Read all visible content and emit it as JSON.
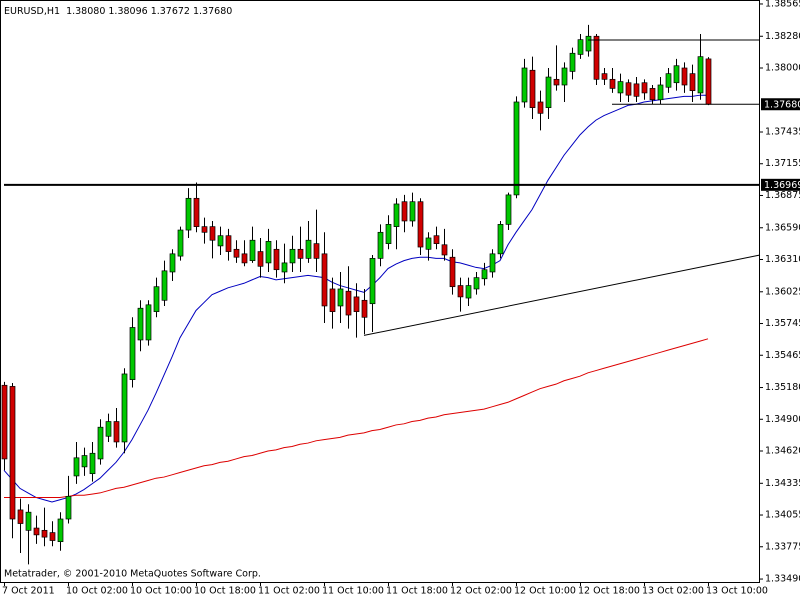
{
  "chart_data": {
    "type": "candlestick",
    "title": "EURUSD,H1",
    "info": "1.38080 1.38096 1.37672 1.37680",
    "annotation": "Metatrader, © 2001-2010 MetaQuotes Software Corp.",
    "categories": [
      "7 Oct 2011",
      null,
      null,
      null,
      null,
      null,
      null,
      null,
      "10 Oct 02:00",
      null,
      null,
      null,
      null,
      null,
      null,
      null,
      "10 Oct 10:00",
      null,
      null,
      null,
      null,
      null,
      null,
      null,
      "10 Oct 18:00",
      null,
      null,
      null,
      null,
      null,
      null,
      null,
      "11 Oct 02:00",
      null,
      null,
      null,
      null,
      null,
      null,
      null,
      "11 Oct 10:00",
      null,
      null,
      null,
      null,
      null,
      null,
      null,
      "11 Oct 18:00",
      null,
      null,
      null,
      null,
      null,
      null,
      null,
      "12 Oct 02:00",
      null,
      null,
      null,
      null,
      null,
      null,
      null,
      "12 Oct 10:00",
      null,
      null,
      null,
      null,
      null,
      null,
      null,
      "12 Oct 18:00",
      null,
      null,
      null,
      null,
      null,
      null,
      null,
      "13 Oct 02:00",
      null,
      null,
      null,
      null,
      null,
      null,
      null,
      "13 Oct 10:00"
    ],
    "open": [
      1.352,
      1.3519,
      1.341,
      1.3392,
      1.3394,
      1.3392,
      1.339,
      1.3382,
      1.3402,
      1.344,
      1.3448,
      1.3442,
      1.3455,
      1.3475,
      1.3488,
      1.347,
      1.3525,
      1.356,
      1.356,
      1.3585,
      1.3595,
      1.362,
      1.3634,
      1.3657,
      1.3685,
      1.366,
      1.366,
      1.3643,
      1.3652,
      1.364,
      1.3636,
      1.363,
      1.3638,
      1.3628,
      1.364,
      1.362,
      1.3628,
      1.364,
      1.3632,
      1.3645,
      1.3636,
      1.3605,
      1.359,
      1.3603,
      1.3598,
      1.3595,
      1.3592,
      1.3632,
      1.3645,
      1.366,
      1.3682,
      1.3665,
      1.3682,
      1.364,
      1.3652,
      1.3644,
      1.3633,
      1.3608,
      1.3597,
      1.3605,
      1.3614,
      1.362,
      1.3636,
      1.3662,
      1.3688,
      1.377,
      1.3798,
      1.377,
      1.3765,
      1.379,
      1.3785,
      1.3797,
      1.3812,
      1.3815,
      1.3828,
      1.3795,
      1.379,
      1.3778,
      1.3787,
      1.3786,
      1.3787,
      1.3782,
      1.3772,
      1.3783,
      1.3787,
      1.38,
      1.3795,
      1.3778,
      1.3808
    ],
    "high": [
      1.3523,
      1.3522,
      1.342,
      1.3415,
      1.3405,
      1.3412,
      1.34,
      1.3408,
      1.344,
      1.347,
      1.3465,
      1.347,
      1.349,
      1.3495,
      1.35,
      1.3535,
      1.358,
      1.3595,
      1.3595,
      1.3615,
      1.363,
      1.364,
      1.366,
      1.3694,
      1.3699,
      1.3668,
      1.3665,
      1.366,
      1.3658,
      1.3648,
      1.3648,
      1.366,
      1.365,
      1.3658,
      1.3648,
      1.3645,
      1.3652,
      1.366,
      1.3665,
      1.3675,
      1.3655,
      1.3615,
      1.362,
      1.3625,
      1.361,
      1.3605,
      1.3635,
      1.3662,
      1.367,
      1.3685,
      1.3688,
      1.369,
      1.3685,
      1.3655,
      1.366,
      1.3658,
      1.364,
      1.3615,
      1.3615,
      1.362,
      1.3628,
      1.364,
      1.3665,
      1.369,
      1.3775,
      1.3808,
      1.381,
      1.378,
      1.38,
      1.382,
      1.3805,
      1.3818,
      1.383,
      1.3838,
      1.383,
      1.38,
      1.38,
      1.3795,
      1.379,
      1.3792,
      1.379,
      1.3785,
      1.3792,
      1.38,
      1.3808,
      1.3805,
      1.3803,
      1.383,
      1.38096
    ],
    "low": [
      1.3445,
      1.3385,
      1.3372,
      1.3362,
      1.338,
      1.3378,
      1.3378,
      1.3374,
      1.3398,
      1.3433,
      1.344,
      1.3435,
      1.345,
      1.347,
      1.3465,
      1.346,
      1.3518,
      1.355,
      1.3555,
      1.358,
      1.359,
      1.3612,
      1.363,
      1.365,
      1.3655,
      1.3645,
      1.3632,
      1.3635,
      1.363,
      1.3628,
      1.3625,
      1.3628,
      1.3615,
      1.362,
      1.3615,
      1.361,
      1.362,
      1.362,
      1.3628,
      1.362,
      1.3575,
      1.357,
      1.3575,
      1.357,
      1.3562,
      1.3565,
      1.3567,
      1.3625,
      1.364,
      1.364,
      1.3655,
      1.366,
      1.3635,
      1.363,
      1.364,
      1.363,
      1.36,
      1.3585,
      1.359,
      1.36,
      1.3608,
      1.3615,
      1.3632,
      1.3657,
      1.3685,
      1.3765,
      1.3755,
      1.3745,
      1.3755,
      1.378,
      1.377,
      1.379,
      1.3808,
      1.381,
      1.3785,
      1.3785,
      1.3778,
      1.377,
      1.377,
      1.377,
      1.3772,
      1.3768,
      1.3768,
      1.3778,
      1.378,
      1.3778,
      1.377,
      1.3772,
      1.37672
    ],
    "close": [
      1.3455,
      1.3402,
      1.3398,
      1.3408,
      1.3388,
      1.3386,
      1.3383,
      1.3402,
      1.3422,
      1.3456,
      1.3458,
      1.346,
      1.3483,
      1.3488,
      1.347,
      1.353,
      1.3571,
      1.3588,
      1.3591,
      1.3607,
      1.3621,
      1.3636,
      1.3657,
      1.3685,
      1.366,
      1.3655,
      1.3648,
      1.3652,
      1.3638,
      1.3633,
      1.3628,
      1.3648,
      1.3625,
      1.3647,
      1.3622,
      1.3628,
      1.364,
      1.3632,
      1.3648,
      1.3632,
      1.359,
      1.3585,
      1.3605,
      1.3582,
      1.3585,
      1.358,
      1.3632,
      1.3655,
      1.3662,
      1.368,
      1.3665,
      1.3682,
      1.3642,
      1.365,
      1.3645,
      1.3635,
      1.3607,
      1.3598,
      1.3608,
      1.3615,
      1.3622,
      1.3636,
      1.3662,
      1.3688,
      1.377,
      1.38,
      1.3765,
      1.376,
      1.3792,
      1.3785,
      1.38,
      1.3813,
      1.3825,
      1.3828,
      1.379,
      1.379,
      1.3782,
      1.3788,
      1.3776,
      1.3775,
      1.3778,
      1.3772,
      1.3785,
      1.3795,
      1.3802,
      1.3785,
      1.378,
      1.381,
      1.3768
    ],
    "up_color": "#00c800",
    "down_color": "#d00000",
    "overlays": [
      {
        "color": "#0000c0",
        "values": [
          1.3445,
          1.3437,
          1.3429,
          1.3425,
          1.3421,
          1.3419,
          1.3417,
          1.3419,
          1.3421,
          1.3424,
          1.3428,
          1.3433,
          1.3438,
          1.3445,
          1.3452,
          1.3461,
          1.3472,
          1.3485,
          1.3498,
          1.3513,
          1.3529,
          1.3545,
          1.3562,
          1.3574,
          1.3586,
          1.3593,
          1.36,
          1.3603,
          1.3606,
          1.3608,
          1.361,
          1.3613,
          1.3616,
          1.3615,
          1.3613,
          1.3614,
          1.3615,
          1.3616,
          1.3617,
          1.3616,
          1.3615,
          1.3611,
          1.3608,
          1.3606,
          1.3604,
          1.3602,
          1.3608,
          1.3615,
          1.3623,
          1.3627,
          1.363,
          1.3632,
          1.3633,
          1.3633,
          1.3632,
          1.3632,
          1.3629,
          1.3628,
          1.3626,
          1.3624,
          1.3623,
          1.3626,
          1.363,
          1.3644,
          1.3655,
          1.3665,
          1.3675,
          1.3688,
          1.3701,
          1.3712,
          1.3723,
          1.3732,
          1.3741,
          1.3748,
          1.3754,
          1.3758,
          1.3761,
          1.3764,
          1.3767,
          1.3768,
          1.377,
          1.3771,
          1.3772,
          1.3773,
          1.3774,
          1.3775,
          1.3775,
          1.3776,
          1.3776
        ]
      },
      {
        "color": "#dd0000",
        "values": [
          1.3421,
          1.3421,
          1.3421,
          1.3421,
          1.3421,
          1.3421,
          1.3421,
          1.3421,
          1.3422,
          1.3423,
          1.3423,
          1.3424,
          1.3425,
          1.3427,
          1.3429,
          1.343,
          1.3432,
          1.3434,
          1.3436,
          1.3438,
          1.3439,
          1.3441,
          1.3443,
          1.3445,
          1.3447,
          1.3449,
          1.345,
          1.3452,
          1.3453,
          1.3455,
          1.3457,
          1.3458,
          1.346,
          1.3462,
          1.3463,
          1.3465,
          1.3466,
          1.3468,
          1.3469,
          1.3471,
          1.3472,
          1.3473,
          1.3474,
          1.3476,
          1.3477,
          1.3478,
          1.348,
          1.3481,
          1.3483,
          1.3485,
          1.3486,
          1.3488,
          1.3489,
          1.3491,
          1.3492,
          1.3494,
          1.3495,
          1.3496,
          1.3497,
          1.3498,
          1.3499,
          1.3501,
          1.3503,
          1.3505,
          1.3508,
          1.3511,
          1.3514,
          1.3517,
          1.3519,
          1.3521,
          1.3524,
          1.3526,
          1.3528,
          1.3531,
          1.3533,
          1.3535,
          1.3537,
          1.3539,
          1.3541,
          1.3543,
          1.3545,
          1.3547,
          1.3549,
          1.3551,
          1.3553,
          1.3555,
          1.3557,
          1.3559,
          1.3561
        ]
      }
    ],
    "hlines": [
      {
        "value": 1.36969,
        "from": 0,
        "boxed": true,
        "width": 2
      },
      {
        "value": 1.3768,
        "label": "1.37680",
        "from": 76,
        "boxed": true,
        "width": 1
      },
      {
        "value": 1.38247,
        "from": 73,
        "boxed": false,
        "width": 1
      }
    ],
    "trendline": {
      "x": [
        45,
        94.5
      ],
      "y": [
        1.3564,
        1.3635
      ]
    },
    "ylim": [
      1.33464,
      1.386
    ],
    "yticks": [
      1.38565,
      {
        "value": 1.3828,
        "label": "1.38280"
      },
      {
        "value": 1.38,
        "label": "1.38000"
      },
      1.37435,
      1.37155,
      1.36875,
      {
        "value": 1.3659,
        "label": "1.36590"
      },
      {
        "value": 1.3631,
        "label": "1.36310"
      },
      1.36025,
      1.35745,
      1.35465,
      {
        "value": 1.3518,
        "label": "1.35180"
      },
      {
        "value": 1.349,
        "label": "1.34900"
      },
      {
        "value": 1.3462,
        "label": "1.34620"
      },
      1.34335,
      1.34055,
      1.33775,
      {
        "value": 1.3349,
        "label": "1.33490"
      }
    ]
  }
}
